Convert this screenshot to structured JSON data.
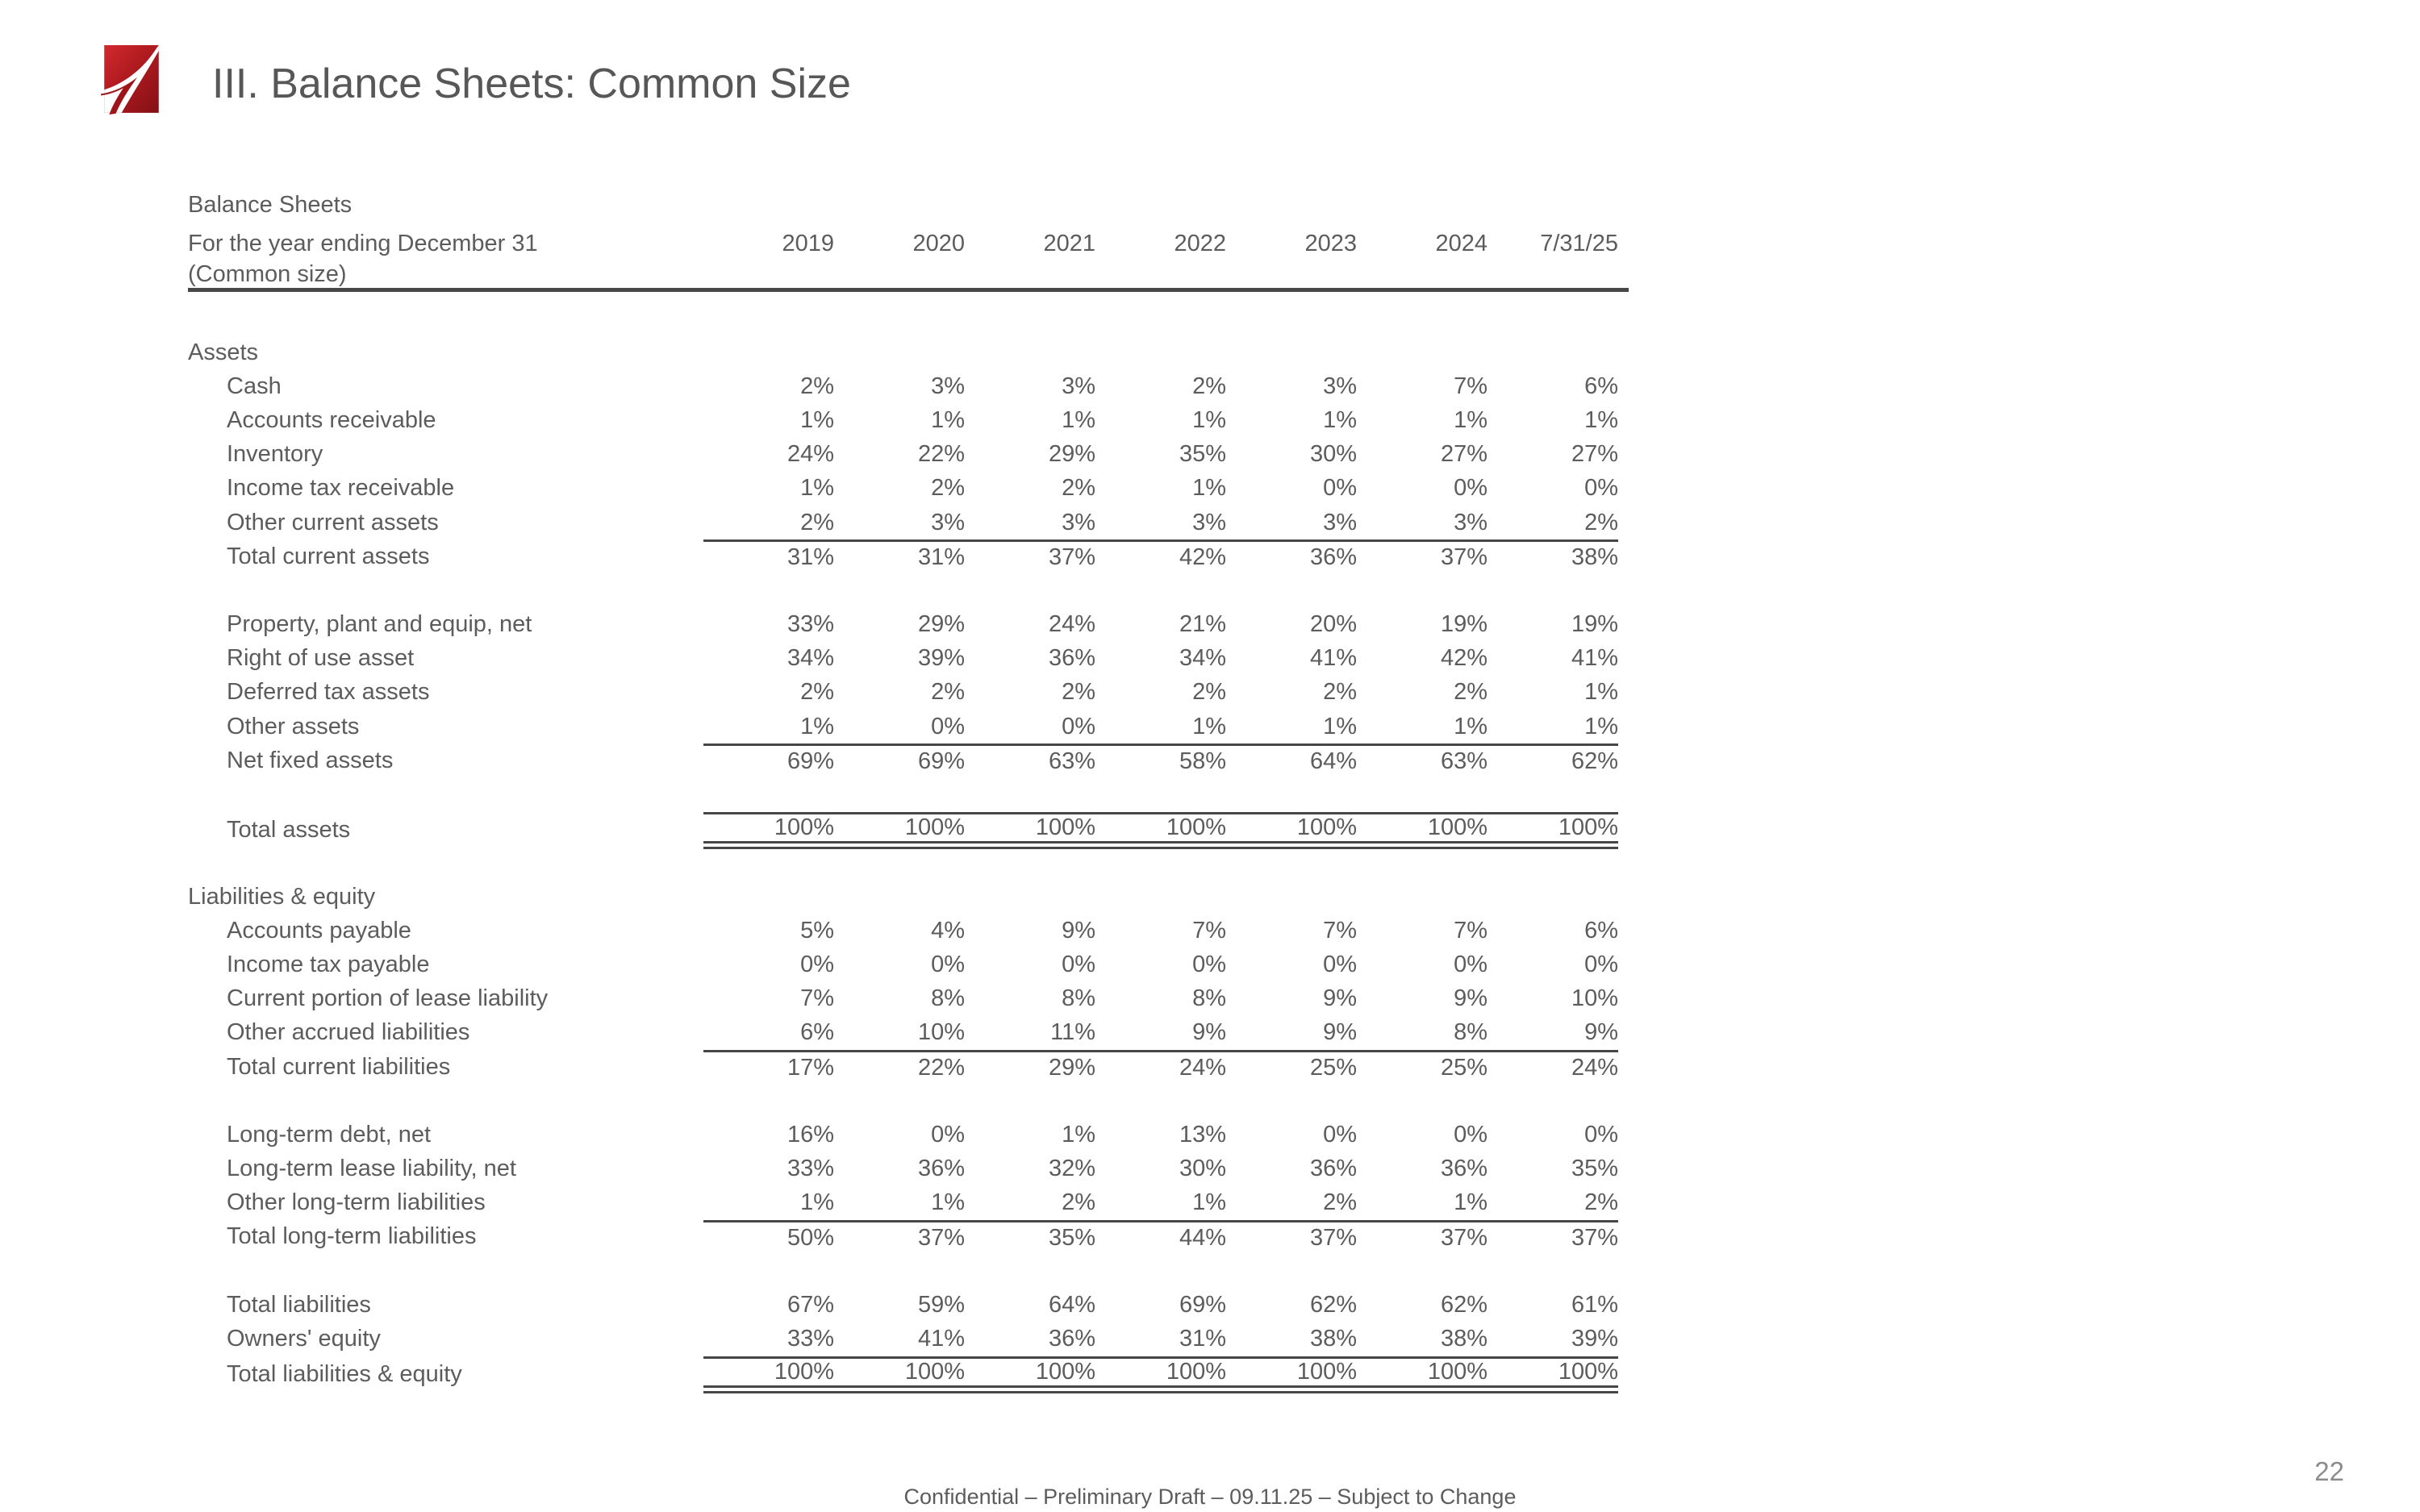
{
  "slide": {
    "title": "III. Balance Sheets: Common Size",
    "footer": "Confidential – Preliminary Draft – 09.11.25 –  Subject to Change",
    "page_number": "22"
  },
  "logo": {
    "name": "red-swoosh-logo",
    "color_top": "#d22a2e",
    "color_mid": "#b01b20",
    "color_dark": "#871116",
    "swoosh_color": "#ffffff"
  },
  "colors": {
    "text_gray": "#5c5c5c",
    "rule_gray": "#474747",
    "page_number_gray": "#8c8c8c",
    "background": "#ffffff"
  },
  "table": {
    "caption_line1": "Balance Sheets",
    "caption_line2": "For the year ending December 31",
    "caption_line3": "(Common size)",
    "columns": [
      "2019",
      "2020",
      "2021",
      "2022",
      "2023",
      "2024",
      "7/31/25"
    ],
    "rows": [
      {
        "type": "section",
        "label": "Assets"
      },
      {
        "type": "data",
        "label": "Cash",
        "values": [
          "2%",
          "3%",
          "3%",
          "2%",
          "3%",
          "7%",
          "6%"
        ]
      },
      {
        "type": "data",
        "label": "Accounts receivable",
        "values": [
          "1%",
          "1%",
          "1%",
          "1%",
          "1%",
          "1%",
          "1%"
        ]
      },
      {
        "type": "data",
        "label": "Inventory",
        "values": [
          "24%",
          "22%",
          "29%",
          "35%",
          "30%",
          "27%",
          "27%"
        ]
      },
      {
        "type": "data",
        "label": "Income tax receivable",
        "values": [
          "1%",
          "2%",
          "2%",
          "1%",
          "0%",
          "0%",
          "0%"
        ]
      },
      {
        "type": "data",
        "label": "Other current assets",
        "values": [
          "2%",
          "3%",
          "3%",
          "3%",
          "3%",
          "3%",
          "2%"
        ]
      },
      {
        "type": "total",
        "label": "Total current assets",
        "values": [
          "31%",
          "31%",
          "37%",
          "42%",
          "36%",
          "37%",
          "38%"
        ]
      },
      {
        "type": "blank"
      },
      {
        "type": "data",
        "label": "Property, plant and equip, net",
        "values": [
          "33%",
          "29%",
          "24%",
          "21%",
          "20%",
          "19%",
          "19%"
        ]
      },
      {
        "type": "data",
        "label": "Right of use asset",
        "values": [
          "34%",
          "39%",
          "36%",
          "34%",
          "41%",
          "42%",
          "41%"
        ]
      },
      {
        "type": "data",
        "label": "Deferred tax assets",
        "values": [
          "2%",
          "2%",
          "2%",
          "2%",
          "2%",
          "2%",
          "1%"
        ]
      },
      {
        "type": "data",
        "label": "Other assets",
        "values": [
          "1%",
          "0%",
          "0%",
          "1%",
          "1%",
          "1%",
          "1%"
        ]
      },
      {
        "type": "total",
        "label": "Net fixed assets",
        "values": [
          "69%",
          "69%",
          "63%",
          "58%",
          "64%",
          "63%",
          "62%"
        ]
      },
      {
        "type": "blank"
      },
      {
        "type": "grand",
        "label": "Total assets",
        "values": [
          "100%",
          "100%",
          "100%",
          "100%",
          "100%",
          "100%",
          "100%"
        ]
      },
      {
        "type": "blank"
      },
      {
        "type": "section",
        "label": "Liabilities & equity"
      },
      {
        "type": "data",
        "label": "Accounts payable",
        "values": [
          "5%",
          "4%",
          "9%",
          "7%",
          "7%",
          "7%",
          "6%"
        ]
      },
      {
        "type": "data",
        "label": "Income tax payable",
        "values": [
          "0%",
          "0%",
          "0%",
          "0%",
          "0%",
          "0%",
          "0%"
        ]
      },
      {
        "type": "data",
        "label": "Current portion of lease liability",
        "values": [
          "7%",
          "8%",
          "8%",
          "8%",
          "9%",
          "9%",
          "10%"
        ]
      },
      {
        "type": "data",
        "label": "Other accrued liabilities",
        "values": [
          "6%",
          "10%",
          "11%",
          "9%",
          "9%",
          "8%",
          "9%"
        ]
      },
      {
        "type": "total",
        "label": "Total current liabilities",
        "values": [
          "17%",
          "22%",
          "29%",
          "24%",
          "25%",
          "25%",
          "24%"
        ]
      },
      {
        "type": "blank"
      },
      {
        "type": "data",
        "label": "Long-term debt, net",
        "values": [
          "16%",
          "0%",
          "1%",
          "13%",
          "0%",
          "0%",
          "0%"
        ]
      },
      {
        "type": "data",
        "label": "Long-term lease liability, net",
        "values": [
          "33%",
          "36%",
          "32%",
          "30%",
          "36%",
          "36%",
          "35%"
        ]
      },
      {
        "type": "data",
        "label": "Other long-term liabilities",
        "values": [
          "1%",
          "1%",
          "2%",
          "1%",
          "2%",
          "1%",
          "2%"
        ]
      },
      {
        "type": "total",
        "label": "Total long-term liabilities",
        "values": [
          "50%",
          "37%",
          "35%",
          "44%",
          "37%",
          "37%",
          "37%"
        ]
      },
      {
        "type": "blank"
      },
      {
        "type": "data",
        "label": "Total liabilities",
        "values": [
          "67%",
          "59%",
          "64%",
          "69%",
          "62%",
          "62%",
          "61%"
        ]
      },
      {
        "type": "data",
        "label": "Owners' equity",
        "values": [
          "33%",
          "41%",
          "36%",
          "31%",
          "38%",
          "38%",
          "39%"
        ]
      },
      {
        "type": "grand",
        "label": "Total liabilities & equity",
        "values": [
          "100%",
          "100%",
          "100%",
          "100%",
          "100%",
          "100%",
          "100%"
        ]
      }
    ]
  }
}
